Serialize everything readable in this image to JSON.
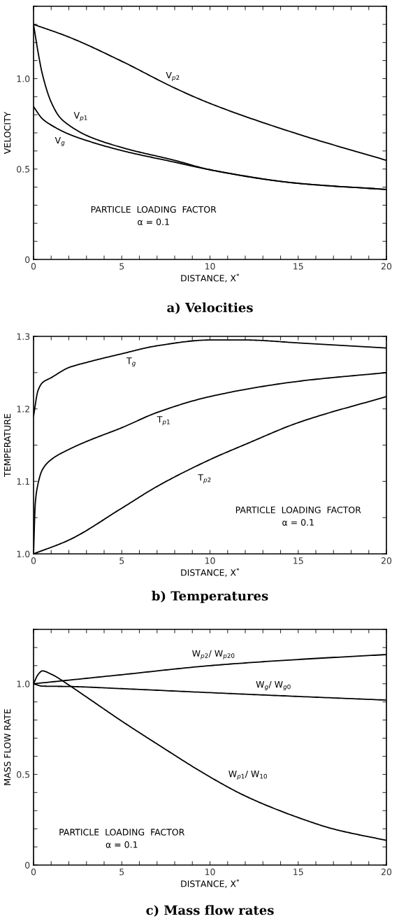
{
  "chart_data": [
    {
      "type": "line",
      "title": "a) Velocities",
      "xlabel": "DISTANCE, X$^{*}$",
      "ylabel": "VELOCITY",
      "xlim": [
        0,
        20
      ],
      "ylim": [
        0,
        1.4
      ],
      "xticks": [
        0,
        {
          "value": 1,
          "label": null
        },
        {
          "value": 2,
          "label": null
        },
        {
          "value": 3,
          "label": null
        },
        {
          "value": 4,
          "label": null
        },
        5,
        {
          "value": 6,
          "label": null
        },
        {
          "value": 7,
          "label": null
        },
        {
          "value": 8,
          "label": null
        },
        {
          "value": 9,
          "label": null
        },
        10,
        {
          "value": 11,
          "label": null
        },
        {
          "value": 12,
          "label": null
        },
        {
          "value": 13,
          "label": null
        },
        {
          "value": 14,
          "label": null
        },
        15,
        {
          "value": 16,
          "label": null
        },
        {
          "value": 17,
          "label": null
        },
        {
          "value": 18,
          "label": null
        },
        {
          "value": 19,
          "label": null
        },
        20
      ],
      "yticks": [
        0,
        {
          "value": 0.1,
          "label": null
        },
        {
          "value": 0.2,
          "label": null
        },
        {
          "value": 0.3,
          "label": null
        },
        {
          "value": 0.4,
          "label": null
        },
        0.5,
        {
          "value": 0.6,
          "label": null
        },
        {
          "value": 0.7,
          "label": null
        },
        {
          "value": 0.8,
          "label": null
        },
        {
          "value": 0.9,
          "label": null
        },
        {
          "value": 1.0,
          "label": "1.0"
        },
        {
          "value": 1.1,
          "label": null
        },
        {
          "value": 1.2,
          "label": null
        },
        {
          "value": 1.3,
          "label": null
        },
        {
          "value": 1.4,
          "label": null
        }
      ],
      "series": [
        {
          "name": "V$_{p2}$",
          "color": "#000000",
          "x": [
            0,
            2,
            5,
            8,
            10,
            15,
            20
          ],
          "values": [
            1.3,
            1.23,
            1.096,
            0.948,
            0.863,
            0.693,
            0.548
          ]
        },
        {
          "name": "V$_{p1}$",
          "color": "#000000",
          "x": [
            0,
            0.25,
            0.5,
            1,
            1.5,
            2,
            3,
            5,
            8,
            10,
            15,
            20
          ],
          "values": [
            1.3,
            1.15,
            1.025,
            0.87,
            0.785,
            0.743,
            0.686,
            0.619,
            0.548,
            0.496,
            0.421,
            0.387
          ]
        },
        {
          "name": "V$_{g}$",
          "color": "#000000",
          "x": [
            0,
            0.5,
            1,
            2,
            3,
            5,
            8,
            10,
            15,
            20
          ],
          "values": [
            0.845,
            0.778,
            0.743,
            0.693,
            0.658,
            0.602,
            0.538,
            0.496,
            0.421,
            0.387
          ]
        }
      ],
      "annotations": [
        "PARTICLE  LOADING  FACTOR\nα = 0.1"
      ]
    },
    {
      "type": "line",
      "title": "b) Temperatures",
      "xlabel": "DISTANCE, X$^{*}$",
      "ylabel": "TEMPERATURE",
      "xlim": [
        0,
        20
      ],
      "ylim": [
        1.0,
        1.3
      ],
      "xticks": [
        0,
        {
          "value": 1,
          "label": null
        },
        {
          "value": 2,
          "label": null
        },
        {
          "value": 3,
          "label": null
        },
        {
          "value": 4,
          "label": null
        },
        5,
        {
          "value": 6,
          "label": null
        },
        {
          "value": 7,
          "label": null
        },
        {
          "value": 8,
          "label": null
        },
        {
          "value": 9,
          "label": null
        },
        10,
        {
          "value": 11,
          "label": null
        },
        {
          "value": 12,
          "label": null
        },
        {
          "value": 13,
          "label": null
        },
        {
          "value": 14,
          "label": null
        },
        15,
        {
          "value": 16,
          "label": null
        },
        {
          "value": 17,
          "label": null
        },
        {
          "value": 18,
          "label": null
        },
        {
          "value": 19,
          "label": null
        },
        20
      ],
      "yticks": [
        {
          "value": 1.0,
          "label": "1.0"
        },
        {
          "value": 1.05,
          "label": null
        },
        1.1,
        {
          "value": 1.15,
          "label": null
        },
        1.2,
        {
          "value": 1.25,
          "label": null
        },
        1.3
      ],
      "series": [
        {
          "name": "T$_{g}$",
          "color": "#000000",
          "x": [
            0,
            0.25,
            0.5,
            1,
            2,
            3,
            5,
            7,
            10,
            12,
            15,
            20
          ],
          "values": [
            1.19,
            1.225,
            1.236,
            1.243,
            1.257,
            1.264,
            1.276,
            1.287,
            1.295,
            1.295,
            1.291,
            1.284
          ]
        },
        {
          "name": "T$_{p1}$",
          "color": "#000000",
          "x": [
            0,
            0.1,
            0.2,
            0.5,
            1,
            2,
            3,
            5,
            7,
            10,
            15,
            20
          ],
          "values": [
            1.0,
            1.07,
            1.09,
            1.116,
            1.13,
            1.144,
            1.155,
            1.174,
            1.195,
            1.217,
            1.238,
            1.25
          ]
        },
        {
          "name": "T$_{p2}$",
          "color": "#000000",
          "x": [
            0,
            2,
            5,
            7,
            10,
            12,
            15,
            20
          ],
          "values": [
            1.0,
            1.019,
            1.063,
            1.093,
            1.13,
            1.151,
            1.181,
            1.217
          ]
        }
      ],
      "annotations": [
        "PARTICLE  LOADING  FACTOR\nα = 0.1"
      ]
    },
    {
      "type": "line",
      "title": "c) Mass flow rates",
      "xlabel": "DISTANCE, X$^{*}$",
      "ylabel": "MASS FLOW RATE",
      "xlim": [
        0,
        20
      ],
      "ylim": [
        0,
        1.3
      ],
      "xticks": [
        0,
        {
          "value": 1,
          "label": null
        },
        {
          "value": 2,
          "label": null
        },
        {
          "value": 3,
          "label": null
        },
        {
          "value": 4,
          "label": null
        },
        5,
        {
          "value": 6,
          "label": null
        },
        {
          "value": 7,
          "label": null
        },
        {
          "value": 8,
          "label": null
        },
        {
          "value": 9,
          "label": null
        },
        10,
        {
          "value": 11,
          "label": null
        },
        {
          "value": 12,
          "label": null
        },
        {
          "value": 13,
          "label": null
        },
        {
          "value": 14,
          "label": null
        },
        15,
        {
          "value": 16,
          "label": null
        },
        {
          "value": 17,
          "label": null
        },
        {
          "value": 18,
          "label": null
        },
        {
          "value": 19,
          "label": null
        },
        20
      ],
      "yticks": [
        0,
        {
          "value": 0.1,
          "label": null
        },
        {
          "value": 0.2,
          "label": null
        },
        {
          "value": 0.3,
          "label": null
        },
        {
          "value": 0.4,
          "label": null
        },
        0.5,
        {
          "value": 0.6,
          "label": null
        },
        {
          "value": 0.7,
          "label": null
        },
        {
          "value": 0.8,
          "label": null
        },
        {
          "value": 0.9,
          "label": null
        },
        {
          "value": 1.0,
          "label": "1.0"
        },
        {
          "value": 1.1,
          "label": null
        },
        {
          "value": 1.2,
          "label": null
        },
        {
          "value": 1.3,
          "label": null
        }
      ],
      "series": [
        {
          "name": "W$_{p2}$/ W$_{p20}$",
          "color": "#000000",
          "x": [
            0,
            5,
            10,
            15,
            20
          ],
          "values": [
            1.0,
            1.05,
            1.1,
            1.134,
            1.161
          ]
        },
        {
          "name": "W$_{g}$/ W$_{g0}$",
          "color": "#000000",
          "x": [
            0,
            0.5,
            2,
            5,
            10,
            15,
            20
          ],
          "values": [
            1.0,
            0.987,
            0.985,
            0.973,
            0.951,
            0.93,
            0.91
          ]
        },
        {
          "name": "W$_{p1}$/ W$_{10}$",
          "color": "#000000",
          "x": [
            0,
            0.25,
            0.5,
            1,
            2,
            3,
            5,
            7,
            10,
            12,
            15,
            17,
            20
          ],
          "values": [
            1.0,
            1.05,
            1.071,
            1.053,
            0.993,
            0.927,
            0.794,
            0.668,
            0.486,
            0.381,
            0.262,
            0.199,
            0.136
          ]
        }
      ],
      "annotations": [
        "PARTICLE  LOADING  FACTOR\nα = 0.1"
      ]
    }
  ]
}
